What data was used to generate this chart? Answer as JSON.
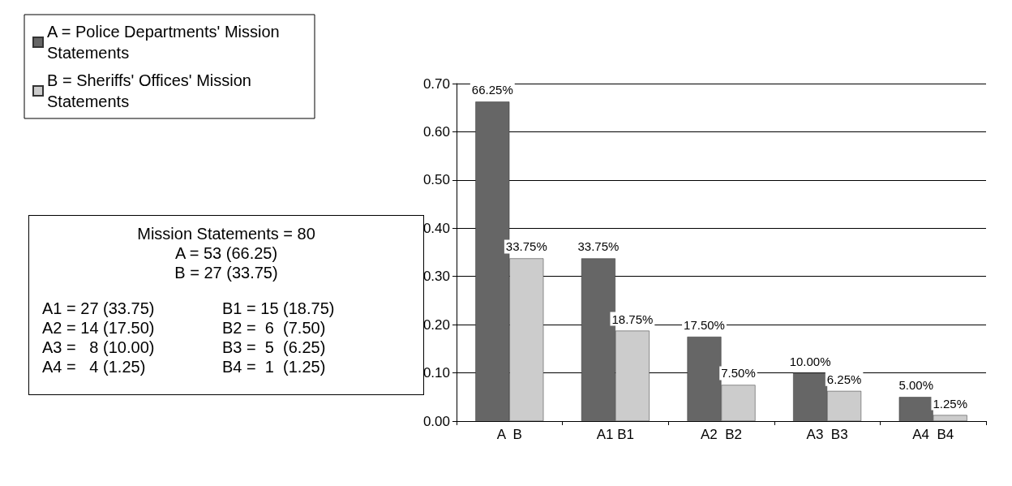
{
  "chart_data": {
    "type": "bar",
    "categories": [
      "A  B",
      "A1 B1",
      "A2  B2",
      "A3  B3",
      "A4  B4"
    ],
    "series": [
      {
        "name": "A = Police Departments' Mission Statements",
        "color": "#666666",
        "values": [
          0.6625,
          0.3375,
          0.175,
          0.1,
          0.05
        ],
        "value_labels": [
          "66.25%",
          "33.75%",
          "17.50%",
          "10.00%",
          "5.00%"
        ]
      },
      {
        "name": "B = Sheriffs' Offices' Mission Statements",
        "color": "#cccccc",
        "values": [
          0.3375,
          0.1875,
          0.075,
          0.0625,
          0.0125
        ],
        "value_labels": [
          "33.75%",
          "18.75%",
          "7.50%",
          "6.25%",
          "1.25%"
        ]
      }
    ],
    "ylim": [
      0,
      0.7
    ],
    "yticks": [
      {
        "value": 0,
        "label": "0.00"
      },
      {
        "value": 0.1,
        "label": "0.10"
      },
      {
        "value": 0.2,
        "label": "0.20"
      },
      {
        "value": 0.3,
        "label": "0.30"
      },
      {
        "value": 0.4,
        "label": "0.40"
      },
      {
        "value": 0.5,
        "label": "0.50"
      },
      {
        "value": 0.6,
        "label": "0.60"
      },
      {
        "value": 0.7,
        "label": "0.70"
      }
    ],
    "grid": "y",
    "legend": "top left",
    "annotations": [
      "Mission Statements = 80",
      "A = 53  (66.25)",
      "B = 27  (33.75)",
      "A1 = 27 (33.75)",
      "B1 = 15 (18.75)",
      "A2 = 14 (17.50)",
      "B2 =  6  (7.50)",
      "A3 =   8 (10.00)",
      "B3 =  5  (6.25)",
      "A4 =   4 (1.25)",
      "B4 =  1  (1.25)"
    ]
  }
}
